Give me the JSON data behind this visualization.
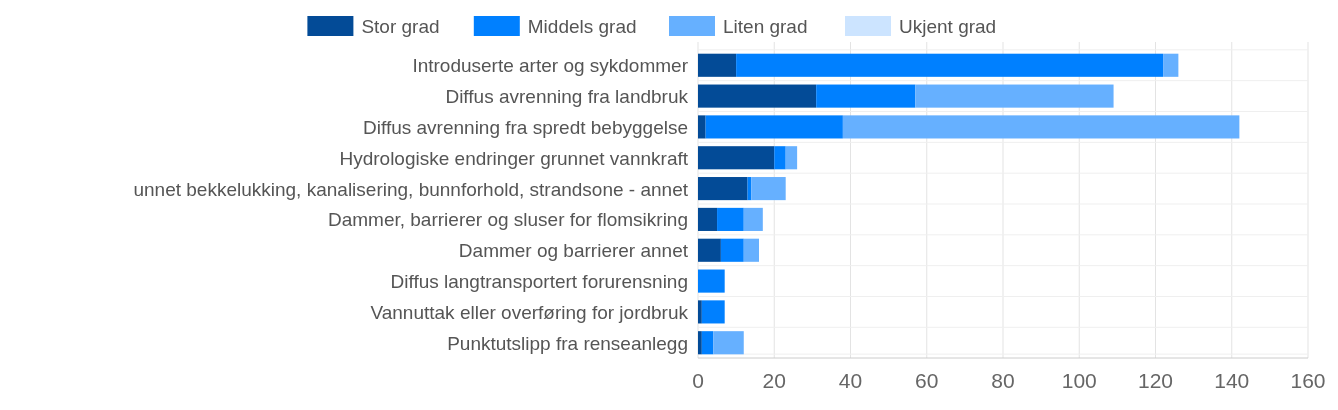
{
  "chart_data": {
    "type": "bar",
    "orientation": "horizontal",
    "stacked": true,
    "categories": [
      "Introduserte arter og sykdommer",
      "Diffus avrenning fra landbruk",
      "Diffus avrenning fra spredt bebyggelse",
      "Hydrologiske endringer grunnet vannkraft",
      "unnet bekkelukking, kanalisering, bunnforhold, strandsone - annet",
      "Dammer, barrierer og sluser for flomsikring",
      "Dammer og barrierer annet",
      "Diffus langtransportert forurensning",
      "Vannuttak eller overføring for jordbruk",
      "Punktutslipp fra renseanlegg"
    ],
    "series": [
      {
        "name": "Stor grad",
        "color": "#034b97",
        "values": [
          10,
          31,
          2,
          20,
          13,
          5,
          6,
          0,
          1,
          1
        ]
      },
      {
        "name": "Middels grad",
        "color": "#0080ff",
        "values": [
          112,
          26,
          36,
          3,
          1,
          7,
          6,
          7,
          6,
          3
        ]
      },
      {
        "name": "Liten grad",
        "color": "#66b0ff",
        "values": [
          4,
          52,
          104,
          3,
          9,
          5,
          4,
          0,
          0,
          8
        ]
      },
      {
        "name": "Ukjent grad",
        "color": "#cce4ff",
        "values": [
          0,
          0,
          0,
          0,
          0,
          0,
          0,
          0,
          0,
          0
        ]
      }
    ],
    "xlim": [
      0,
      160
    ],
    "xticks": [
      0,
      20,
      40,
      60,
      80,
      100,
      120,
      140,
      160
    ],
    "grid": "x",
    "legend": "top"
  }
}
